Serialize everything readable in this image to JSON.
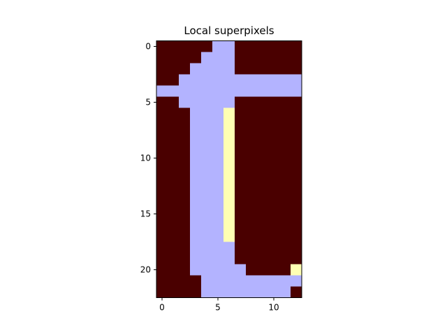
{
  "chart_data": {
    "type": "heatmap",
    "title": "Local superpixels",
    "xlabel": "",
    "ylabel": "",
    "rows": 23,
    "cols": 13,
    "x_ticks": [
      0,
      5,
      10
    ],
    "y_ticks": [
      0,
      5,
      10,
      15,
      20
    ],
    "grid": false,
    "legend": "none",
    "colormap": [
      "#4a0000",
      "#b3b3ff",
      "#ffffb3"
    ],
    "grid_values": [
      [
        0,
        0,
        0,
        0,
        0,
        1,
        1,
        0,
        0,
        0,
        0,
        0,
        0
      ],
      [
        0,
        0,
        0,
        0,
        1,
        1,
        1,
        0,
        0,
        0,
        0,
        0,
        0
      ],
      [
        0,
        0,
        0,
        1,
        1,
        1,
        1,
        0,
        0,
        0,
        0,
        0,
        0
      ],
      [
        0,
        0,
        1,
        1,
        1,
        1,
        1,
        1,
        1,
        1,
        1,
        1,
        1
      ],
      [
        1,
        1,
        1,
        1,
        1,
        1,
        1,
        1,
        1,
        1,
        1,
        1,
        1
      ],
      [
        0,
        0,
        1,
        1,
        1,
        1,
        1,
        0,
        0,
        0,
        0,
        0,
        0
      ],
      [
        0,
        0,
        0,
        1,
        1,
        1,
        2,
        0,
        0,
        0,
        0,
        0,
        0
      ],
      [
        0,
        0,
        0,
        1,
        1,
        1,
        2,
        0,
        0,
        0,
        0,
        0,
        0
      ],
      [
        0,
        0,
        0,
        1,
        1,
        1,
        2,
        0,
        0,
        0,
        0,
        0,
        0
      ],
      [
        0,
        0,
        0,
        1,
        1,
        1,
        2,
        0,
        0,
        0,
        0,
        0,
        0
      ],
      [
        0,
        0,
        0,
        1,
        1,
        1,
        2,
        0,
        0,
        0,
        0,
        0,
        0
      ],
      [
        0,
        0,
        0,
        1,
        1,
        1,
        2,
        0,
        0,
        0,
        0,
        0,
        0
      ],
      [
        0,
        0,
        0,
        1,
        1,
        1,
        2,
        0,
        0,
        0,
        0,
        0,
        0
      ],
      [
        0,
        0,
        0,
        1,
        1,
        1,
        2,
        0,
        0,
        0,
        0,
        0,
        0
      ],
      [
        0,
        0,
        0,
        1,
        1,
        1,
        2,
        0,
        0,
        0,
        0,
        0,
        0
      ],
      [
        0,
        0,
        0,
        1,
        1,
        1,
        2,
        0,
        0,
        0,
        0,
        0,
        0
      ],
      [
        0,
        0,
        0,
        1,
        1,
        1,
        2,
        0,
        0,
        0,
        0,
        0,
        0
      ],
      [
        0,
        0,
        0,
        1,
        1,
        1,
        2,
        0,
        0,
        0,
        0,
        0,
        0
      ],
      [
        0,
        0,
        0,
        1,
        1,
        1,
        1,
        0,
        0,
        0,
        0,
        0,
        0
      ],
      [
        0,
        0,
        0,
        1,
        1,
        1,
        1,
        0,
        0,
        0,
        0,
        0,
        0
      ],
      [
        0,
        0,
        0,
        1,
        1,
        1,
        1,
        1,
        0,
        0,
        0,
        0,
        2
      ],
      [
        0,
        0,
        0,
        0,
        1,
        1,
        1,
        1,
        1,
        1,
        1,
        1,
        1
      ],
      [
        0,
        0,
        0,
        0,
        1,
        1,
        1,
        1,
        1,
        1,
        1,
        1,
        0
      ]
    ]
  }
}
